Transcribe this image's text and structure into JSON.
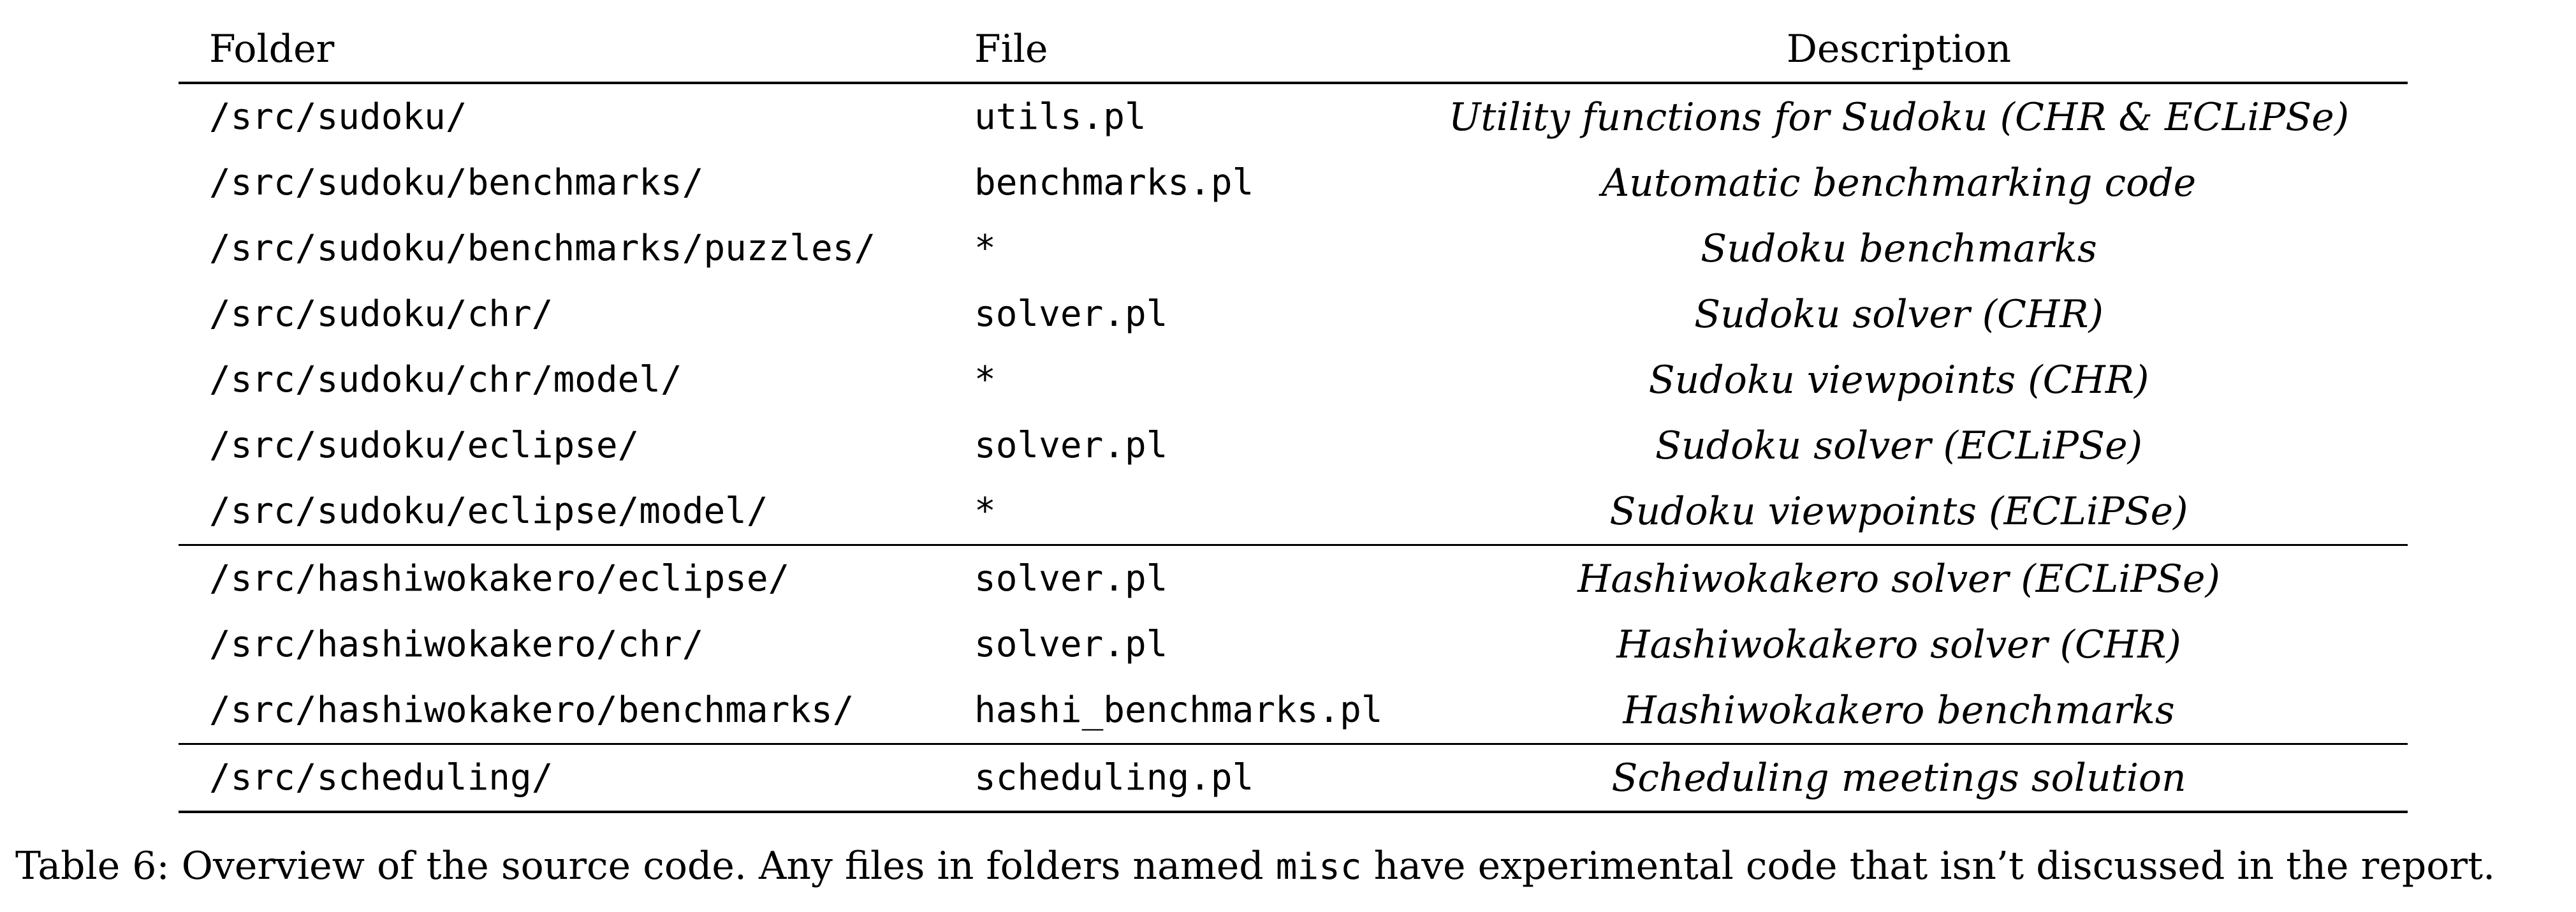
{
  "table": {
    "headers": {
      "folder": "Folder",
      "file": "File",
      "description": "Description"
    },
    "rows": [
      {
        "folder": "/src/sudoku/",
        "file": "utils.pl",
        "description": "Utility functions for Sudoku (CHR & ECLiPSe)"
      },
      {
        "folder": "/src/sudoku/benchmarks/",
        "file": "benchmarks.pl",
        "description": "Automatic benchmarking code"
      },
      {
        "folder": "/src/sudoku/benchmarks/puzzles/",
        "file": "*",
        "description": "Sudoku benchmarks"
      },
      {
        "folder": "/src/sudoku/chr/",
        "file": "solver.pl",
        "description": "Sudoku solver (CHR)"
      },
      {
        "folder": "/src/sudoku/chr/model/",
        "file": "*",
        "description": "Sudoku viewpoints (CHR)"
      },
      {
        "folder": "/src/sudoku/eclipse/",
        "file": "solver.pl",
        "description": "Sudoku solver (ECLiPSe)"
      },
      {
        "folder": "/src/sudoku/eclipse/model/",
        "file": "*",
        "description": "Sudoku viewpoints (ECLiPSe)"
      },
      {
        "folder": "/src/hashiwokakero/eclipse/",
        "file": "solver.pl",
        "description": "Hashiwokakero solver (ECLiPSe)"
      },
      {
        "folder": "/src/hashiwokakero/chr/",
        "file": "solver.pl",
        "description": "Hashiwokakero solver (CHR)"
      },
      {
        "folder": "/src/hashiwokakero/benchmarks/",
        "file": "hashi_benchmarks.pl",
        "description": "Hashiwokakero benchmarks"
      },
      {
        "folder": "/src/scheduling/",
        "file": "scheduling.pl",
        "description": "Scheduling meetings solution"
      }
    ]
  },
  "caption": {
    "label": "Table 6:",
    "text_before": "Overview of the source code. Any files in folders named",
    "code": "misc",
    "text_after": "have experimental code that isn’t discussed in the report."
  }
}
